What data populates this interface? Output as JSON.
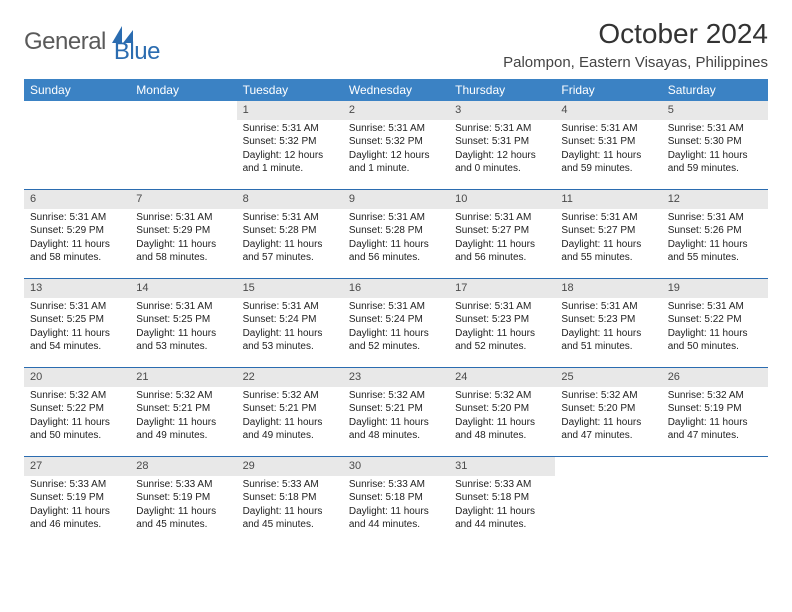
{
  "logo": {
    "general": "General",
    "blue": "Blue"
  },
  "title": "October 2024",
  "location": "Palompon, Eastern Visayas, Philippines",
  "colors": {
    "header_bg": "#3b82c4",
    "header_text": "#ffffff",
    "daynum_bg": "#e8e8e8",
    "week_border": "#2b6cb0",
    "logo_gray": "#5a5a5a",
    "logo_blue": "#2b6cb0"
  },
  "weekdays": [
    "Sunday",
    "Monday",
    "Tuesday",
    "Wednesday",
    "Thursday",
    "Friday",
    "Saturday"
  ],
  "weeks": [
    [
      {
        "num": "",
        "sunrise": "",
        "sunset": "",
        "daylight": ""
      },
      {
        "num": "",
        "sunrise": "",
        "sunset": "",
        "daylight": ""
      },
      {
        "num": "1",
        "sunrise": "Sunrise: 5:31 AM",
        "sunset": "Sunset: 5:32 PM",
        "daylight": "Daylight: 12 hours and 1 minute."
      },
      {
        "num": "2",
        "sunrise": "Sunrise: 5:31 AM",
        "sunset": "Sunset: 5:32 PM",
        "daylight": "Daylight: 12 hours and 1 minute."
      },
      {
        "num": "3",
        "sunrise": "Sunrise: 5:31 AM",
        "sunset": "Sunset: 5:31 PM",
        "daylight": "Daylight: 12 hours and 0 minutes."
      },
      {
        "num": "4",
        "sunrise": "Sunrise: 5:31 AM",
        "sunset": "Sunset: 5:31 PM",
        "daylight": "Daylight: 11 hours and 59 minutes."
      },
      {
        "num": "5",
        "sunrise": "Sunrise: 5:31 AM",
        "sunset": "Sunset: 5:30 PM",
        "daylight": "Daylight: 11 hours and 59 minutes."
      }
    ],
    [
      {
        "num": "6",
        "sunrise": "Sunrise: 5:31 AM",
        "sunset": "Sunset: 5:29 PM",
        "daylight": "Daylight: 11 hours and 58 minutes."
      },
      {
        "num": "7",
        "sunrise": "Sunrise: 5:31 AM",
        "sunset": "Sunset: 5:29 PM",
        "daylight": "Daylight: 11 hours and 58 minutes."
      },
      {
        "num": "8",
        "sunrise": "Sunrise: 5:31 AM",
        "sunset": "Sunset: 5:28 PM",
        "daylight": "Daylight: 11 hours and 57 minutes."
      },
      {
        "num": "9",
        "sunrise": "Sunrise: 5:31 AM",
        "sunset": "Sunset: 5:28 PM",
        "daylight": "Daylight: 11 hours and 56 minutes."
      },
      {
        "num": "10",
        "sunrise": "Sunrise: 5:31 AM",
        "sunset": "Sunset: 5:27 PM",
        "daylight": "Daylight: 11 hours and 56 minutes."
      },
      {
        "num": "11",
        "sunrise": "Sunrise: 5:31 AM",
        "sunset": "Sunset: 5:27 PM",
        "daylight": "Daylight: 11 hours and 55 minutes."
      },
      {
        "num": "12",
        "sunrise": "Sunrise: 5:31 AM",
        "sunset": "Sunset: 5:26 PM",
        "daylight": "Daylight: 11 hours and 55 minutes."
      }
    ],
    [
      {
        "num": "13",
        "sunrise": "Sunrise: 5:31 AM",
        "sunset": "Sunset: 5:25 PM",
        "daylight": "Daylight: 11 hours and 54 minutes."
      },
      {
        "num": "14",
        "sunrise": "Sunrise: 5:31 AM",
        "sunset": "Sunset: 5:25 PM",
        "daylight": "Daylight: 11 hours and 53 minutes."
      },
      {
        "num": "15",
        "sunrise": "Sunrise: 5:31 AM",
        "sunset": "Sunset: 5:24 PM",
        "daylight": "Daylight: 11 hours and 53 minutes."
      },
      {
        "num": "16",
        "sunrise": "Sunrise: 5:31 AM",
        "sunset": "Sunset: 5:24 PM",
        "daylight": "Daylight: 11 hours and 52 minutes."
      },
      {
        "num": "17",
        "sunrise": "Sunrise: 5:31 AM",
        "sunset": "Sunset: 5:23 PM",
        "daylight": "Daylight: 11 hours and 52 minutes."
      },
      {
        "num": "18",
        "sunrise": "Sunrise: 5:31 AM",
        "sunset": "Sunset: 5:23 PM",
        "daylight": "Daylight: 11 hours and 51 minutes."
      },
      {
        "num": "19",
        "sunrise": "Sunrise: 5:31 AM",
        "sunset": "Sunset: 5:22 PM",
        "daylight": "Daylight: 11 hours and 50 minutes."
      }
    ],
    [
      {
        "num": "20",
        "sunrise": "Sunrise: 5:32 AM",
        "sunset": "Sunset: 5:22 PM",
        "daylight": "Daylight: 11 hours and 50 minutes."
      },
      {
        "num": "21",
        "sunrise": "Sunrise: 5:32 AM",
        "sunset": "Sunset: 5:21 PM",
        "daylight": "Daylight: 11 hours and 49 minutes."
      },
      {
        "num": "22",
        "sunrise": "Sunrise: 5:32 AM",
        "sunset": "Sunset: 5:21 PM",
        "daylight": "Daylight: 11 hours and 49 minutes."
      },
      {
        "num": "23",
        "sunrise": "Sunrise: 5:32 AM",
        "sunset": "Sunset: 5:21 PM",
        "daylight": "Daylight: 11 hours and 48 minutes."
      },
      {
        "num": "24",
        "sunrise": "Sunrise: 5:32 AM",
        "sunset": "Sunset: 5:20 PM",
        "daylight": "Daylight: 11 hours and 48 minutes."
      },
      {
        "num": "25",
        "sunrise": "Sunrise: 5:32 AM",
        "sunset": "Sunset: 5:20 PM",
        "daylight": "Daylight: 11 hours and 47 minutes."
      },
      {
        "num": "26",
        "sunrise": "Sunrise: 5:32 AM",
        "sunset": "Sunset: 5:19 PM",
        "daylight": "Daylight: 11 hours and 47 minutes."
      }
    ],
    [
      {
        "num": "27",
        "sunrise": "Sunrise: 5:33 AM",
        "sunset": "Sunset: 5:19 PM",
        "daylight": "Daylight: 11 hours and 46 minutes."
      },
      {
        "num": "28",
        "sunrise": "Sunrise: 5:33 AM",
        "sunset": "Sunset: 5:19 PM",
        "daylight": "Daylight: 11 hours and 45 minutes."
      },
      {
        "num": "29",
        "sunrise": "Sunrise: 5:33 AM",
        "sunset": "Sunset: 5:18 PM",
        "daylight": "Daylight: 11 hours and 45 minutes."
      },
      {
        "num": "30",
        "sunrise": "Sunrise: 5:33 AM",
        "sunset": "Sunset: 5:18 PM",
        "daylight": "Daylight: 11 hours and 44 minutes."
      },
      {
        "num": "31",
        "sunrise": "Sunrise: 5:33 AM",
        "sunset": "Sunset: 5:18 PM",
        "daylight": "Daylight: 11 hours and 44 minutes."
      },
      {
        "num": "",
        "sunrise": "",
        "sunset": "",
        "daylight": ""
      },
      {
        "num": "",
        "sunrise": "",
        "sunset": "",
        "daylight": ""
      }
    ]
  ]
}
